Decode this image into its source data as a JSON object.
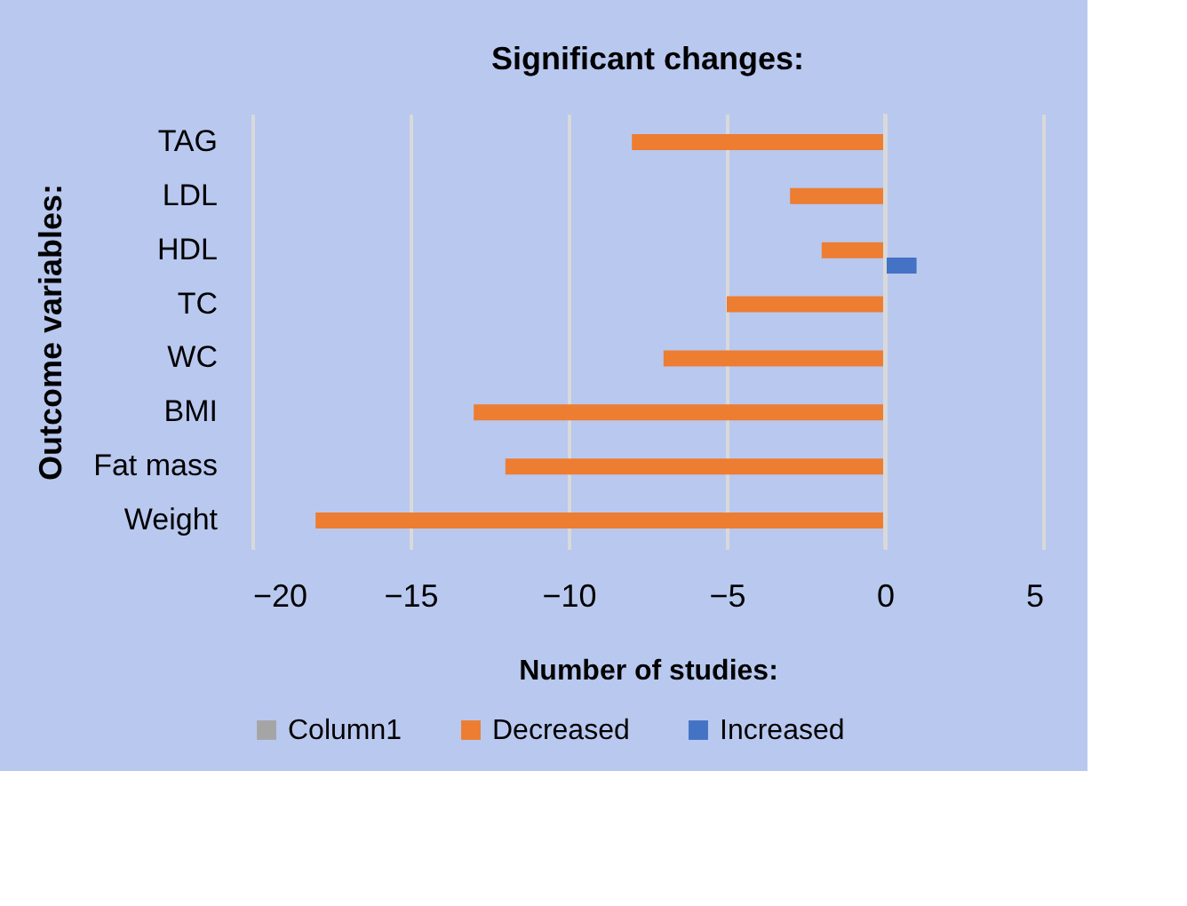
{
  "chart_data": {
    "type": "bar",
    "orientation": "horizontal",
    "title": "Significant changes:",
    "xlabel": "Number of studies:",
    "ylabel": "Outcome  variables:",
    "categories": [
      "TAG",
      "LDL",
      "HDL",
      "TC",
      "WC",
      "BMI",
      "Fat mass",
      "Weight"
    ],
    "series": [
      {
        "name": "Column1",
        "color": "#a5a5a5",
        "values": [
          null,
          null,
          null,
          null,
          null,
          null,
          null,
          null
        ]
      },
      {
        "name": "Decreased",
        "color": "#ed7d31",
        "values": [
          -8,
          -3,
          -2,
          -5,
          -7,
          -13,
          -12,
          -18
        ]
      },
      {
        "name": "Increased",
        "color": "#4472c4",
        "values": [
          null,
          null,
          1,
          null,
          null,
          null,
          null,
          null
        ]
      }
    ],
    "xlim": [
      -20,
      5
    ],
    "xticks": [
      -20,
      -15,
      -10,
      -5,
      0,
      5
    ],
    "grid": "x",
    "legend": "bottom"
  }
}
